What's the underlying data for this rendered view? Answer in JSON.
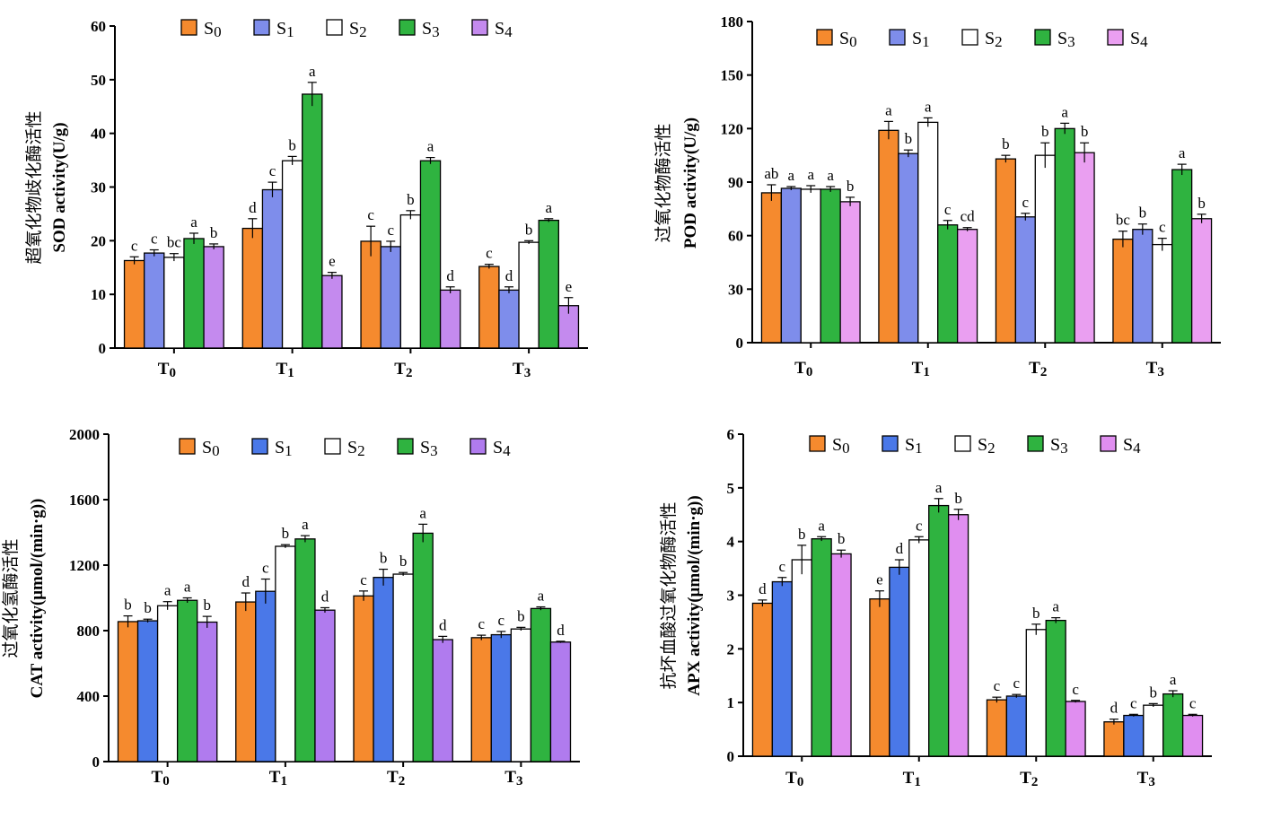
{
  "chart_data": [
    {
      "type": "bar",
      "categories": [
        "T0",
        "T1",
        "T2",
        "T3"
      ],
      "ylabel_zh": "超氧化物歧化酶活性",
      "ylabel": "SOD activity(U/g)",
      "ylim": [
        0,
        60
      ],
      "yticks": [
        0,
        10,
        20,
        30,
        40,
        50,
        60
      ],
      "legend": "top",
      "series": [
        {
          "name": "S0",
          "color": "#F58A2E",
          "values": [
            16.3,
            22.3,
            19.9,
            15.2
          ],
          "errors": [
            0.7,
            1.8,
            2.8,
            0.4
          ],
          "sig": [
            "c",
            "d",
            "c",
            "c"
          ]
        },
        {
          "name": "S1",
          "color": "#7E8DEB",
          "values": [
            17.7,
            29.5,
            18.9,
            10.8
          ],
          "errors": [
            0.6,
            1.4,
            1.0,
            0.6
          ],
          "sig": [
            "c",
            "c",
            "c",
            "d"
          ]
        },
        {
          "name": "S2",
          "color": "#FFFFFF",
          "values": [
            16.9,
            34.9,
            24.8,
            19.7
          ],
          "errors": [
            0.7,
            0.8,
            0.8,
            0.3
          ],
          "sig": [
            "bc",
            "b",
            "b",
            "b"
          ]
        },
        {
          "name": "S3",
          "color": "#2FB340",
          "values": [
            20.4,
            47.3,
            34.9,
            23.8
          ],
          "errors": [
            1.0,
            2.2,
            0.6,
            0.3
          ],
          "sig": [
            "a",
            "a",
            "a",
            "a"
          ]
        },
        {
          "name": "S4",
          "color": "#C48AEE",
          "values": [
            18.9,
            13.5,
            10.8,
            7.9
          ],
          "errors": [
            0.5,
            0.6,
            0.6,
            1.5
          ],
          "sig": [
            "b",
            "e",
            "d",
            "e"
          ]
        }
      ]
    },
    {
      "type": "bar",
      "categories": [
        "T0",
        "T1",
        "T2",
        "T3"
      ],
      "ylabel_zh": "过氧化物酶活性",
      "ylabel": "POD activity(U/g)",
      "ylim": [
        0,
        180
      ],
      "yticks": [
        0,
        30,
        60,
        90,
        120,
        150,
        180
      ],
      "legend": "top",
      "series": [
        {
          "name": "S0",
          "color": "#F58A2E",
          "values": [
            84,
            119,
            103,
            58
          ],
          "errors": [
            4.5,
            5,
            2,
            4.5
          ],
          "sig": [
            "ab",
            "a",
            "b",
            "bc"
          ]
        },
        {
          "name": "S1",
          "color": "#7E8DEB",
          "values": [
            86.5,
            106,
            70.5,
            63.5
          ],
          "errors": [
            1,
            2,
            2,
            3
          ],
          "sig": [
            "a",
            "b",
            "c",
            "b"
          ]
        },
        {
          "name": "S2",
          "color": "#FFFFFF",
          "values": [
            86,
            123.5,
            105,
            55
          ],
          "errors": [
            2,
            2.5,
            7,
            3.5
          ],
          "sig": [
            "a",
            "a",
            "b",
            "c"
          ]
        },
        {
          "name": "S3",
          "color": "#2FB340",
          "values": [
            86,
            66,
            120,
            97
          ],
          "errors": [
            1.5,
            2.5,
            3,
            3
          ],
          "sig": [
            "a",
            "c",
            "a",
            "a"
          ]
        },
        {
          "name": "S4",
          "color": "#EA9FF1",
          "values": [
            79,
            63.5,
            106.5,
            69.5
          ],
          "errors": [
            2.5,
            1,
            5.5,
            2.5
          ],
          "sig": [
            "b",
            "cd",
            "b",
            "b"
          ]
        }
      ]
    },
    {
      "type": "bar",
      "categories": [
        "T0",
        "T1",
        "T2",
        "T3"
      ],
      "ylabel_zh": "过氧化氢酶活性",
      "ylabel": "CAT activity(μmol/(min·g))",
      "ylim": [
        0,
        2000
      ],
      "yticks": [
        0,
        400,
        800,
        1200,
        1600,
        2000
      ],
      "legend": "top",
      "series": [
        {
          "name": "S0",
          "color": "#F58A2E",
          "values": [
            855,
            975,
            1012,
            757
          ],
          "errors": [
            35,
            55,
            30,
            15
          ],
          "sig": [
            "b",
            "d",
            "c",
            "c"
          ]
        },
        {
          "name": "S1",
          "color": "#4A78E8",
          "values": [
            860,
            1040,
            1125,
            775
          ],
          "errors": [
            10,
            75,
            50,
            20
          ],
          "sig": [
            "b",
            "c",
            "b",
            "c"
          ]
        },
        {
          "name": "S2",
          "color": "#FFFFFF",
          "values": [
            952,
            1315,
            1145,
            810
          ],
          "errors": [
            25,
            10,
            10,
            10
          ],
          "sig": [
            "a",
            "b",
            "b",
            "b"
          ]
        },
        {
          "name": "S3",
          "color": "#2FB340",
          "values": [
            985,
            1360,
            1395,
            935
          ],
          "errors": [
            15,
            20,
            55,
            10
          ],
          "sig": [
            "a",
            "a",
            "a",
            "a"
          ]
        },
        {
          "name": "S4",
          "color": "#B07BEE",
          "values": [
            852,
            925,
            745,
            730
          ],
          "errors": [
            35,
            15,
            20,
            5
          ],
          "sig": [
            "b",
            "d",
            "d",
            "d"
          ]
        }
      ]
    },
    {
      "type": "bar",
      "categories": [
        "T0",
        "T1",
        "T2",
        "T3"
      ],
      "ylabel_zh": "抗坏血酸过氧化物酶活性",
      "ylabel": "APX activity(μmol/(min·g))",
      "ylim": [
        0,
        6
      ],
      "yticks": [
        0,
        1,
        2,
        3,
        4,
        5,
        6
      ],
      "legend": "top",
      "series": [
        {
          "name": "S0",
          "color": "#F58A2E",
          "values": [
            2.85,
            2.93,
            1.05,
            0.64
          ],
          "errors": [
            0.06,
            0.15,
            0.05,
            0.05
          ],
          "sig": [
            "d",
            "e",
            "c",
            "d"
          ]
        },
        {
          "name": "S1",
          "color": "#4A78E8",
          "values": [
            3.25,
            3.52,
            1.12,
            0.76
          ],
          "errors": [
            0.08,
            0.14,
            0.03,
            0.02
          ],
          "sig": [
            "c",
            "d",
            "c",
            "c"
          ]
        },
        {
          "name": "S2",
          "color": "#FFFFFF",
          "values": [
            3.66,
            4.03,
            2.36,
            0.95
          ],
          "errors": [
            0.27,
            0.06,
            0.1,
            0.03
          ],
          "sig": [
            "b",
            "c",
            "b",
            "b"
          ]
        },
        {
          "name": "S3",
          "color": "#2FB340",
          "values": [
            4.05,
            4.67,
            2.53,
            1.16
          ],
          "errors": [
            0.04,
            0.13,
            0.05,
            0.06
          ],
          "sig": [
            "a",
            "a",
            "a",
            "a"
          ]
        },
        {
          "name": "S4",
          "color": "#E08EF0",
          "values": [
            3.77,
            4.5,
            1.02,
            0.76
          ],
          "errors": [
            0.07,
            0.1,
            0.02,
            0.02
          ],
          "sig": [
            "b",
            "b",
            "c",
            "c"
          ]
        }
      ]
    }
  ]
}
